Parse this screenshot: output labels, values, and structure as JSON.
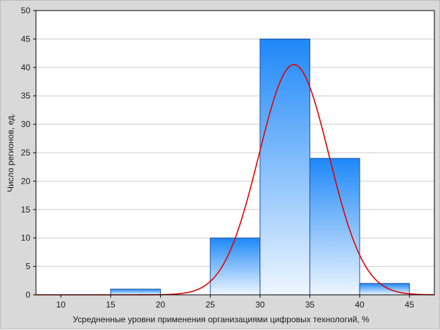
{
  "chart_data": {
    "type": "bar",
    "subtype": "histogram",
    "title": "",
    "xlabel": "Усредненные уровни применения организациями цифровых технологий, %",
    "ylabel": "Число регионов, ед.",
    "xlim": [
      7.5,
      47.5
    ],
    "ylim": [
      0,
      50
    ],
    "x_ticks": [
      "10",
      "15",
      "20",
      "25",
      "30",
      "35",
      "40",
      "45"
    ],
    "x_tick_values": [
      10,
      15,
      20,
      25,
      30,
      35,
      40,
      45
    ],
    "y_ticks": [
      "0",
      "5",
      "10",
      "15",
      "20",
      "25",
      "30",
      "35",
      "40",
      "45",
      "50"
    ],
    "y_tick_values": [
      0,
      5,
      10,
      15,
      20,
      25,
      30,
      35,
      40,
      45,
      50
    ],
    "bins": [
      {
        "from": 15,
        "to": 20,
        "count": 1
      },
      {
        "from": 20,
        "to": 25,
        "count": 0
      },
      {
        "from": 25,
        "to": 30,
        "count": 10
      },
      {
        "from": 30,
        "to": 35,
        "count": 45
      },
      {
        "from": 35,
        "to": 40,
        "count": 24
      },
      {
        "from": 40,
        "to": 45,
        "count": 2
      }
    ],
    "fitted_curve": {
      "type": "normal",
      "mean": 33.4,
      "sd": 3.52,
      "peak": 40.5
    },
    "grid": {
      "horizontal": true,
      "vertical": false
    },
    "colors": {
      "bar_top": "#1e88f8",
      "bar_bottom": "#eef6ff",
      "bar_edge": "#1e4f9f",
      "curve": "#e00000",
      "grid": "#cccccc",
      "plot_bg": "#ffffff",
      "frame_bg": "#d9d9d9"
    }
  }
}
